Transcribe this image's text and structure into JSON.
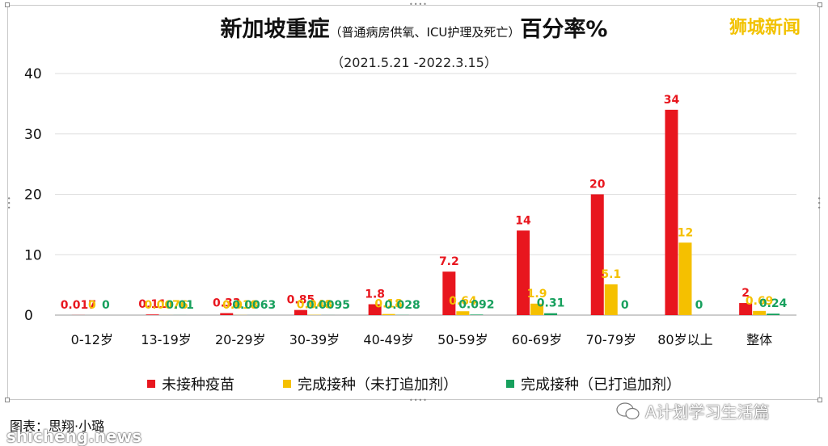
{
  "header": {
    "title_main": "新加坡重症",
    "title_paren": "（普通病房供氧、ICU护理及死亡）",
    "title_suffix": "百分率%",
    "subtitle": "（2021.5.21 -2022.3.15）",
    "brand": "狮城新闻"
  },
  "footer": {
    "credit": "图表：思翔·小璐",
    "site": "shicheng.news",
    "wechat_account": "A计划学习生活篇"
  },
  "colors": {
    "unvaccinated": "#e8161e",
    "vaccinated_no_booster": "#f5c000",
    "vaccinated_booster": "#17a05d"
  },
  "chart_data": {
    "type": "bar",
    "categories": [
      "0-12岁",
      "13-19岁",
      "20-29岁",
      "30-39岁",
      "40-49岁",
      "50-59岁",
      "60-69岁",
      "70-79岁",
      "80岁以上",
      "整体"
    ],
    "series": [
      {
        "name": "未接种疫苗",
        "values": [
          0.017,
          0.11,
          0.33,
          0.85,
          1.8,
          7.2,
          14,
          20,
          34,
          2
        ],
        "labels": [
          "0.017",
          "0.11",
          "0.33",
          "0.85",
          "1.8",
          "7.2",
          "14",
          "20",
          "34",
          "2"
        ]
      },
      {
        "name": "完成接种（未打追加剂）",
        "values": [
          0,
          0.0076,
          0.018,
          0.048,
          0.18,
          0.64,
          1.9,
          5.1,
          12,
          0.69
        ],
        "labels": [
          "0",
          "0.0076",
          "0.018",
          "0.048",
          "0.18",
          "0.64",
          "1.9",
          "5.1",
          "12",
          "0.69"
        ]
      },
      {
        "name": "完成接种（已打追加剂）",
        "values": [
          0,
          0.01,
          0.0063,
          0.0095,
          0.028,
          0.092,
          0.31,
          0,
          0,
          0.24
        ],
        "labels": [
          "0",
          "0.01",
          "0.0063",
          "0.0095",
          "0.028",
          "0.092",
          "0.31",
          "0",
          "0",
          "0.24"
        ]
      }
    ],
    "ylim": [
      0,
      40
    ],
    "yticks": [
      "0",
      "10",
      "20",
      "30",
      "40"
    ],
    "grid": true,
    "legend_position": "bottom"
  }
}
